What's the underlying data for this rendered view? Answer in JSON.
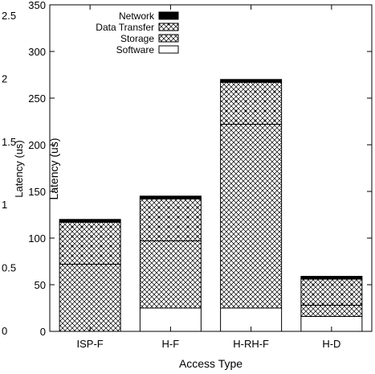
{
  "chart_data": {
    "type": "bar",
    "stacked": true,
    "categories": [
      "ISP-F",
      "H-F",
      "H-RH-F",
      "H-D"
    ],
    "series": [
      {
        "name": "Software",
        "values": [
          0,
          25,
          25,
          16
        ],
        "pattern": "empty"
      },
      {
        "name": "Storage",
        "values": [
          72,
          72,
          197,
          12
        ],
        "pattern": "dense-cross"
      },
      {
        "name": "Data Transfer",
        "values": [
          45,
          45,
          45,
          28
        ],
        "pattern": "diamond-cross"
      },
      {
        "name": "Network",
        "values": [
          3,
          3,
          3,
          3
        ],
        "pattern": "solid"
      }
    ],
    "xlabel": "Access Type",
    "ylabel": "Latency (us)",
    "ylim": [
      0,
      350
    ],
    "yticks": [
      "0",
      "50",
      "100",
      "150",
      "200",
      "250",
      "300",
      "350"
    ],
    "ghost_ylabel": "Latency (us)",
    "ghost_yticks": [
      "0",
      "0.5",
      "1",
      "1.5",
      "2",
      "2.5"
    ],
    "legend_position": "top-right",
    "colors": {
      "fill": "#000000",
      "background": "#ffffff"
    }
  }
}
